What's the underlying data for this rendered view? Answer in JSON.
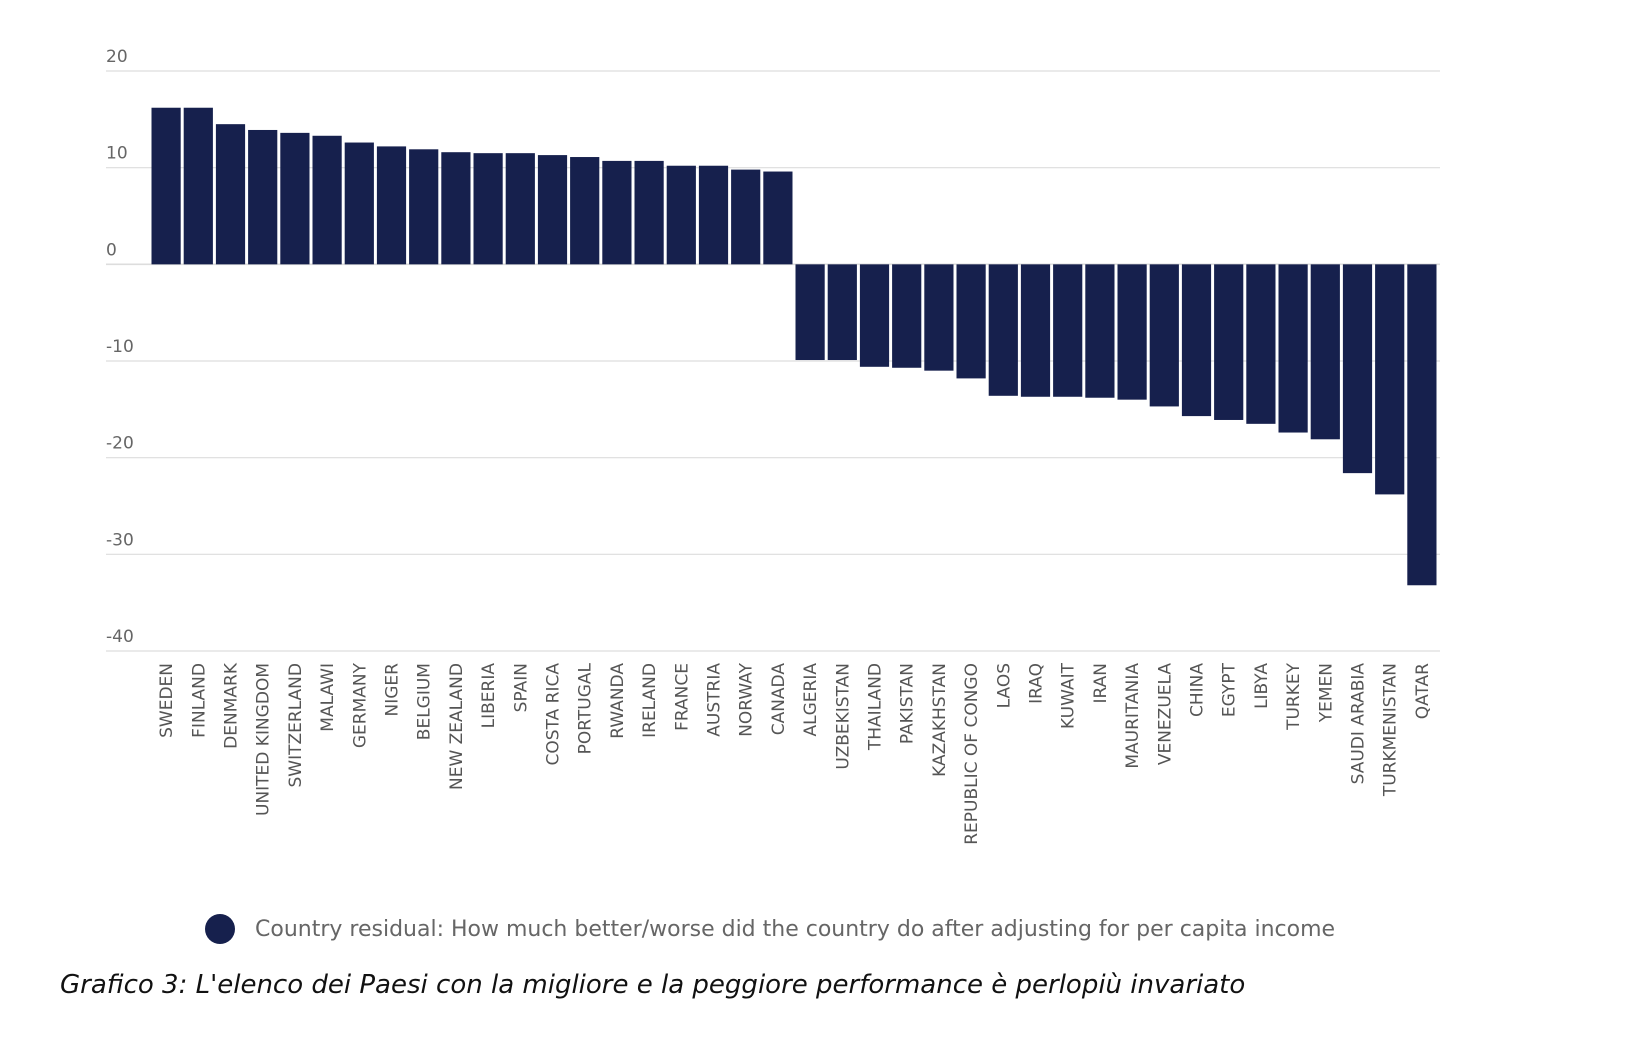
{
  "chart_data": {
    "type": "bar",
    "categories": [
      "SWEDEN",
      "FINLAND",
      "DENMARK",
      "UNITED KINGDOM",
      "SWITZERLAND",
      "MALAWI",
      "GERMANY",
      "NIGER",
      "BELGIUM",
      "NEW ZEALAND",
      "LIBERIA",
      "SPAIN",
      "COSTA RICA",
      "PORTUGAL",
      "RWANDA",
      "IRELAND",
      "FRANCE",
      "AUSTRIA",
      "NORWAY",
      "CANADA",
      "ALGERIA",
      "UZBEKISTAN",
      "THAILAND",
      "PAKISTAN",
      "KAZAKHSTAN",
      "REPUBLIC OF CONGO",
      "LAOS",
      "IRAQ",
      "KUWAIT",
      "IRAN",
      "MAURITANIA",
      "VENEZUELA",
      "CHINA",
      "EGYPT",
      "LIBYA",
      "TURKEY",
      "YEMEN",
      "SAUDI ARABIA",
      "TURKMENISTAN",
      "QATAR"
    ],
    "series": [
      {
        "name": "Country residual: How much better/worse did the country do after adjusting for per capita income",
        "values": [
          16.2,
          16.2,
          14.5,
          13.9,
          13.6,
          13.3,
          12.6,
          12.2,
          11.9,
          11.6,
          11.5,
          11.5,
          11.3,
          11.1,
          10.7,
          10.7,
          10.2,
          10.2,
          9.8,
          9.6,
          -9.9,
          -9.9,
          -10.6,
          -10.7,
          -11.0,
          -11.8,
          -13.6,
          -13.7,
          -13.7,
          -13.8,
          -14.0,
          -14.7,
          -15.7,
          -16.1,
          -16.5,
          -17.4,
          -18.1,
          -21.6,
          -23.8,
          -33.2
        ]
      }
    ],
    "yticks": [
      20,
      10,
      0,
      -10,
      -20,
      -30,
      -40
    ],
    "ylim": [
      -40,
      20
    ],
    "grid": true,
    "legend_position": "bottom",
    "bar_color": "#16204d",
    "grid_color": "#dddddd"
  },
  "legend": {
    "label": "Country residual: How much better/worse did the country do after adjusting for per capita income",
    "color": "#16204d"
  },
  "caption": "Grafico 3: L'elenco dei Paesi con la migliore e la peggiore performance è perlopiù invariato"
}
